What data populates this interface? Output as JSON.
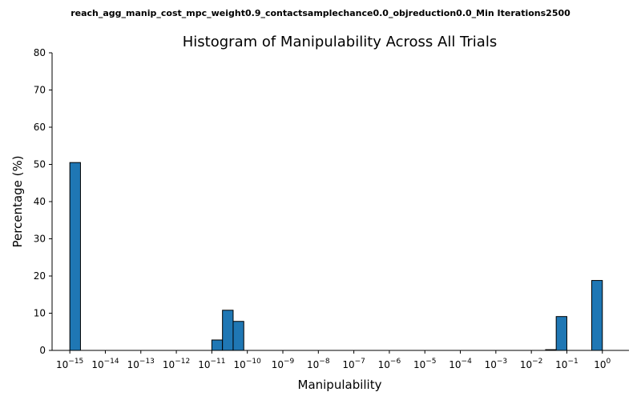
{
  "chart_data": {
    "type": "bar",
    "suptitle": "reach_agg_manip_cost_mpc_weight0.9_contactsamplechance0.0_objreduction0.0_Min Iterations2500",
    "title": "Histogram of Manipulability Across All Trials",
    "xlabel": "Manipulability",
    "ylabel": "Percentage (%)",
    "xscale": "log",
    "xlim_log10": [
      -15.5,
      0.75
    ],
    "ylim": [
      0,
      80
    ],
    "yticks": [
      0,
      10,
      20,
      30,
      40,
      50,
      60,
      70,
      80
    ],
    "xticks": [
      {
        "base": "10",
        "exp": "−15",
        "log10": -15
      },
      {
        "base": "10",
        "exp": "−14",
        "log10": -14
      },
      {
        "base": "10",
        "exp": "−13",
        "log10": -13
      },
      {
        "base": "10",
        "exp": "−12",
        "log10": -12
      },
      {
        "base": "10",
        "exp": "−11",
        "log10": -11
      },
      {
        "base": "10",
        "exp": "−10",
        "log10": -10
      },
      {
        "base": "10",
        "exp": "−9",
        "log10": -9
      },
      {
        "base": "10",
        "exp": "−8",
        "log10": -8
      },
      {
        "base": "10",
        "exp": "−7",
        "log10": -7
      },
      {
        "base": "10",
        "exp": "−6",
        "log10": -6
      },
      {
        "base": "10",
        "exp": "−5",
        "log10": -5
      },
      {
        "base": "10",
        "exp": "−4",
        "log10": -4
      },
      {
        "base": "10",
        "exp": "−3",
        "log10": -3
      },
      {
        "base": "10",
        "exp": "−2",
        "log10": -2
      },
      {
        "base": "10",
        "exp": "−1",
        "log10": -1
      },
      {
        "base": "10",
        "exp": "0",
        "log10": 0
      }
    ],
    "bars": [
      {
        "log10_start": -15.0,
        "log10_end": -14.7,
        "value": 50.5
      },
      {
        "log10_start": -11.0,
        "log10_end": -10.7,
        "value": 2.8
      },
      {
        "log10_start": -10.7,
        "log10_end": -10.4,
        "value": 10.8
      },
      {
        "log10_start": -10.4,
        "log10_end": -10.1,
        "value": 7.8
      },
      {
        "log10_start": -1.6,
        "log10_end": -1.3,
        "value": 0.2
      },
      {
        "log10_start": -1.3,
        "log10_end": -1.0,
        "value": 9.1
      },
      {
        "log10_start": -0.3,
        "log10_end": 0.0,
        "value": 18.8
      }
    ],
    "bar_color": "#1f77b4",
    "edge_color": "#000000",
    "grid": false
  }
}
